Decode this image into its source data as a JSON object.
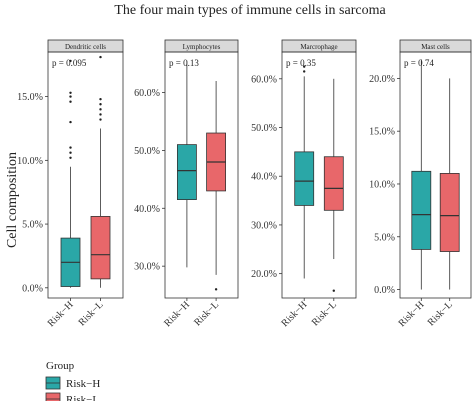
{
  "title": "The four main types of immune cells in sarcoma",
  "ylabel": "Cell composition",
  "legend": {
    "title": "Group",
    "items": [
      {
        "label": "Risk−H",
        "color": "#2aa7a7"
      },
      {
        "label": "Risk−L",
        "color": "#e8676a"
      }
    ]
  },
  "chart_data": [
    {
      "type": "box",
      "facet": "Dendritic cells",
      "pvalue": "p = 0.095",
      "categories": [
        "Risk−H",
        "Risk−L"
      ],
      "ylim": [
        -0.8,
        18.5
      ],
      "yticks": [
        0,
        5,
        10,
        15
      ],
      "ytick_labels": [
        "0.0%",
        "5.0%",
        "10.0%",
        "15.0%"
      ],
      "boxes": [
        {
          "min": 0,
          "q1": 0.1,
          "median": 2.0,
          "q3": 3.9,
          "max": 9.5,
          "outliers": [
            10.2,
            10.6,
            11.0,
            13.0,
            14.6,
            15.0,
            15.3,
            17.8
          ]
        },
        {
          "min": 0,
          "q1": 0.7,
          "median": 2.6,
          "q3": 5.6,
          "max": 12.5,
          "outliers": [
            13.2,
            13.6,
            14.0,
            14.4,
            14.8,
            18.1
          ]
        }
      ]
    },
    {
      "type": "box",
      "facet": "Lymphocytes",
      "pvalue": "p = 0.13",
      "categories": [
        "Risk−H",
        "Risk−L"
      ],
      "ylim": [
        24.5,
        67.0
      ],
      "yticks": [
        30,
        40,
        50,
        60
      ],
      "ytick_labels": [
        "30.0%",
        "40.0%",
        "50.0%",
        "60.0%"
      ],
      "boxes": [
        {
          "min": 29.8,
          "q1": 41.5,
          "median": 46.5,
          "q3": 51.0,
          "max": 65.5,
          "outliers": []
        },
        {
          "min": 28.5,
          "q1": 43.0,
          "median": 48.0,
          "q3": 53.0,
          "max": 62.0,
          "outliers": [
            26.0
          ]
        }
      ]
    },
    {
      "type": "box",
      "facet": "Marcrophage",
      "pvalue": "p = 0.35",
      "categories": [
        "Risk−H",
        "Risk−L"
      ],
      "ylim": [
        15.0,
        65.5
      ],
      "yticks": [
        20,
        30,
        40,
        50,
        60
      ],
      "ytick_labels": [
        "20.0%",
        "30.0%",
        "40.0%",
        "50.0%",
        "60.0%"
      ],
      "boxes": [
        {
          "min": 19.0,
          "q1": 34.0,
          "median": 39.0,
          "q3": 45.0,
          "max": 60.5,
          "outliers": [
            61.5,
            62.5
          ]
        },
        {
          "min": 23.0,
          "q1": 33.0,
          "median": 37.5,
          "q3": 44.0,
          "max": 60.0,
          "outliers": [
            16.5
          ]
        }
      ]
    },
    {
      "type": "box",
      "facet": "Mast cells",
      "pvalue": "p = 0.74",
      "categories": [
        "Risk−H",
        "Risk−L"
      ],
      "ylim": [
        -0.8,
        22.5
      ],
      "yticks": [
        0,
        5,
        10,
        15,
        20
      ],
      "ytick_labels": [
        "0.0%",
        "5.0%",
        "10.0%",
        "15.0%",
        "20.0%"
      ],
      "boxes": [
        {
          "min": 0,
          "q1": 3.8,
          "median": 7.1,
          "q3": 11.2,
          "max": 21.8,
          "outliers": []
        },
        {
          "min": 0,
          "q1": 3.6,
          "median": 7.0,
          "q3": 11.0,
          "max": 20.0,
          "outliers": []
        }
      ]
    }
  ]
}
